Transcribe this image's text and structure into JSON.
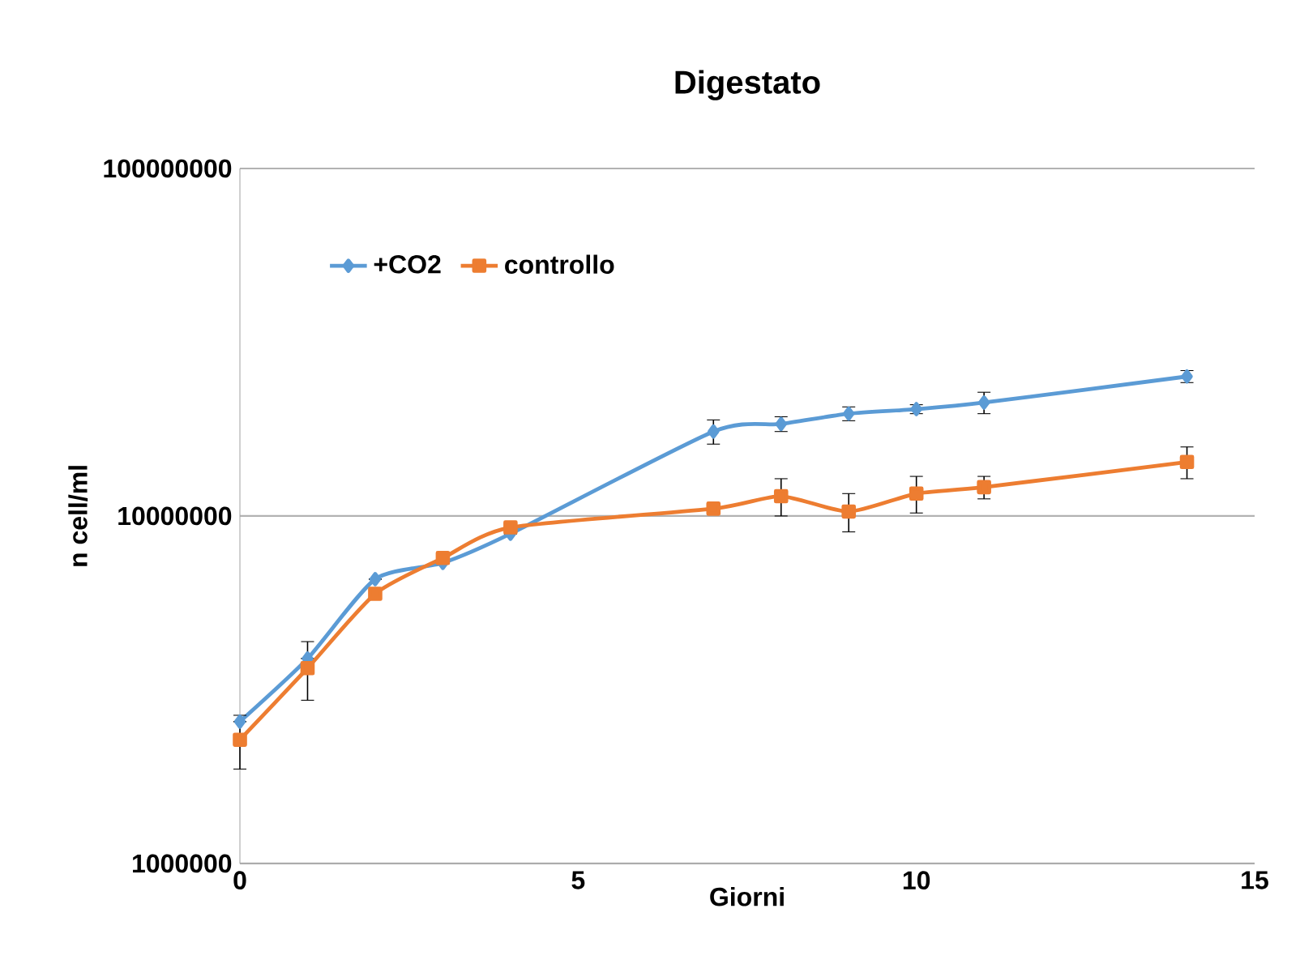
{
  "chart_data": {
    "type": "line",
    "title": "Digestato",
    "xlabel": "Giorni",
    "ylabel": "n cell/ml",
    "x": [
      0,
      1,
      2,
      3,
      4,
      7,
      8,
      9,
      10,
      11,
      14
    ],
    "series": [
      {
        "name": "+CO2",
        "color": "#5b9bd5",
        "marker": "diamond",
        "values": [
          2560000,
          3890000,
          6580000,
          7330000,
          8890000,
          17500000,
          18400000,
          19700000,
          20300000,
          21200000,
          25200000
        ],
        "errors": [
          null,
          null,
          null,
          null,
          null,
          1400000,
          900000,
          900000,
          600000,
          1500000,
          1000000
        ]
      },
      {
        "name": "controllo",
        "color": "#ed7d31",
        "marker": "square",
        "values": [
          2270000,
          3650000,
          5970000,
          7570000,
          9270000,
          10500000,
          11400000,
          10300000,
          11600000,
          12100000,
          14300000
        ],
        "errors": [
          400000,
          700000,
          null,
          null,
          null,
          null,
          1400000,
          1300000,
          1400000,
          900000,
          1500000
        ]
      }
    ],
    "xlim": [
      0,
      15
    ],
    "xticks": [
      0,
      5,
      10,
      15
    ],
    "ylim": [
      1000000,
      100000000
    ],
    "yticks": [
      1000000,
      10000000,
      100000000
    ],
    "log": "y",
    "grid": "y",
    "legend": "top left",
    "line_style": "solid"
  }
}
